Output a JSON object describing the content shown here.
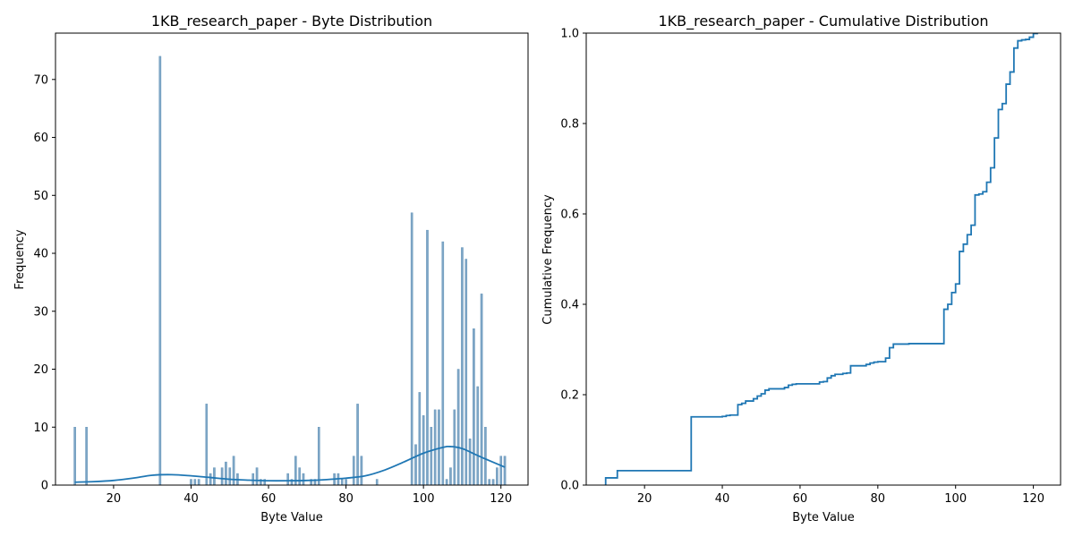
{
  "chart_data": [
    {
      "type": "bar",
      "title": "1KB_research_paper - Byte Distribution",
      "xlabel": "Byte Value",
      "ylabel": "Frequency",
      "xlim": [
        5,
        127
      ],
      "ylim": [
        0,
        78
      ],
      "xticks": [
        20,
        40,
        60,
        80,
        100,
        120
      ],
      "yticks": [
        0,
        10,
        20,
        30,
        40,
        50,
        60,
        70
      ],
      "bar_color": "#7ea6c6",
      "bar_edge_color": "#5d8fb6",
      "kde_color": "#1f77b4",
      "x": [
        10,
        13,
        32,
        40,
        41,
        42,
        44,
        45,
        46,
        48,
        49,
        50,
        51,
        52,
        56,
        57,
        58,
        59,
        65,
        66,
        67,
        68,
        69,
        71,
        72,
        73,
        77,
        78,
        79,
        80,
        82,
        83,
        84,
        88,
        97,
        98,
        99,
        100,
        101,
        102,
        103,
        104,
        105,
        106,
        107,
        108,
        109,
        110,
        111,
        112,
        113,
        114,
        115,
        116,
        117,
        118,
        119,
        120,
        121
      ],
      "values": [
        10,
        10,
        74,
        1,
        1,
        1,
        14,
        2,
        3,
        3,
        4,
        3,
        5,
        2,
        2,
        3,
        1,
        1,
        2,
        1,
        5,
        3,
        2,
        1,
        1,
        10,
        2,
        2,
        1,
        1,
        5,
        14,
        5,
        1,
        47,
        7,
        16,
        12,
        44,
        10,
        13,
        13,
        42,
        1,
        3,
        13,
        20,
        41,
        39,
        8,
        27,
        17,
        33,
        10,
        1,
        1,
        3,
        5,
        5
      ],
      "kde": {
        "x": [
          10,
          15,
          20,
          25,
          30,
          35,
          40,
          45,
          50,
          55,
          60,
          65,
          70,
          75,
          80,
          85,
          90,
          95,
          100,
          105,
          107,
          110,
          115,
          121
        ],
        "y": [
          0.5,
          0.6,
          0.8,
          1.2,
          1.7,
          1.8,
          1.6,
          1.3,
          1.0,
          0.85,
          0.75,
          0.75,
          0.8,
          0.95,
          1.2,
          1.6,
          2.6,
          4.0,
          5.5,
          6.5,
          6.65,
          6.3,
          4.8,
          3.1
        ]
      }
    },
    {
      "type": "line",
      "title": "1KB_research_paper - Cumulative Distribution",
      "xlabel": "Byte Value",
      "ylabel": "Cumulative Frequency",
      "xlim": [
        5,
        127
      ],
      "ylim": [
        0,
        1.0
      ],
      "xticks": [
        20,
        40,
        60,
        80,
        100,
        120
      ],
      "yticks": [
        0.0,
        0.2,
        0.4,
        0.6,
        0.8,
        1.0
      ],
      "ytick_labels": [
        "0.0",
        "0.2",
        "0.4",
        "0.6",
        "0.8",
        "1.0"
      ],
      "line_color": "#1f77b4",
      "step_x": [
        10,
        13,
        32,
        40,
        41,
        42,
        44,
        45,
        46,
        48,
        49,
        50,
        51,
        52,
        56,
        57,
        58,
        59,
        65,
        66,
        67,
        68,
        69,
        71,
        72,
        73,
        77,
        78,
        79,
        80,
        82,
        83,
        84,
        88,
        97,
        98,
        99,
        100,
        101,
        102,
        103,
        104,
        105,
        106,
        107,
        108,
        109,
        110,
        111,
        112,
        113,
        114,
        115,
        116,
        117,
        118,
        119,
        120,
        121
      ],
      "step_y": [
        0.016,
        0.032,
        0.151,
        0.152,
        0.154,
        0.155,
        0.178,
        0.181,
        0.186,
        0.191,
        0.197,
        0.202,
        0.21,
        0.213,
        0.216,
        0.221,
        0.223,
        0.224,
        0.228,
        0.229,
        0.237,
        0.242,
        0.245,
        0.247,
        0.248,
        0.264,
        0.267,
        0.27,
        0.272,
        0.273,
        0.281,
        0.304,
        0.312,
        0.313,
        0.389,
        0.4,
        0.426,
        0.445,
        0.517,
        0.533,
        0.554,
        0.575,
        0.642,
        0.644,
        0.649,
        0.67,
        0.702,
        0.768,
        0.831,
        0.844,
        0.887,
        0.914,
        0.967,
        0.983,
        0.985,
        0.986,
        0.991,
        0.999,
        1.0
      ]
    }
  ]
}
